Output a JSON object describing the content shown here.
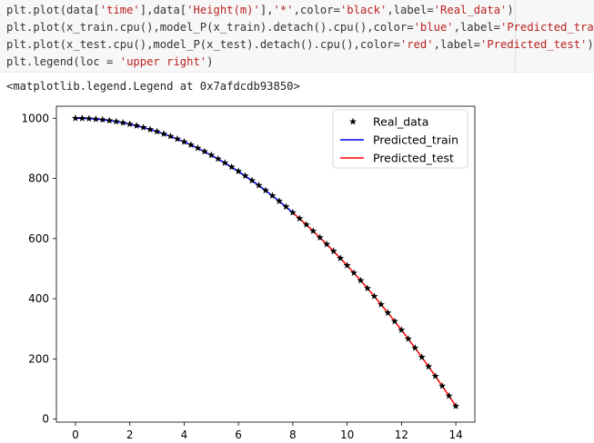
{
  "code": {
    "lines": [
      [
        {
          "t": "plt.plot(data["
        },
        {
          "t": "'time'",
          "s": 1
        },
        {
          "t": "],data["
        },
        {
          "t": "'Height(m)'",
          "s": 1
        },
        {
          "t": "],"
        },
        {
          "t": "'*'",
          "s": 1
        },
        {
          "t": ",color="
        },
        {
          "t": "'black'",
          "s": 1
        },
        {
          "t": ",label="
        },
        {
          "t": "'Real_data'",
          "s": 1
        },
        {
          "t": ")"
        }
      ],
      [
        {
          "t": "plt.plot(x_train.cpu(),model_P(x_train).detach().cpu(),color="
        },
        {
          "t": "'blue'",
          "s": 1
        },
        {
          "t": ",label="
        },
        {
          "t": "'Predicted_train'",
          "s": 1
        },
        {
          "t": ")"
        }
      ],
      [
        {
          "t": "plt.plot(x_test.cpu(),model_P(x_test).detach().cpu(),color="
        },
        {
          "t": "'red'",
          "s": 1
        },
        {
          "t": ",label="
        },
        {
          "t": "'Predicted_test'",
          "s": 1
        },
        {
          "t": ")"
        }
      ],
      [
        {
          "t": "plt.legend(loc = "
        },
        {
          "t": "'upper right'",
          "s": 1
        },
        {
          "t": ")"
        }
      ]
    ]
  },
  "output_text": "<matplotlib.legend.Legend at 0x7afdcdb93850>",
  "chart_data": {
    "type": "line",
    "title": "",
    "xlabel": "",
    "ylabel": "",
    "xlim": [
      -0.7,
      14.7
    ],
    "ylim": [
      -10,
      1040
    ],
    "xticks": [
      0,
      2,
      4,
      6,
      8,
      10,
      12,
      14
    ],
    "yticks": [
      0,
      200,
      400,
      600,
      800,
      1000
    ],
    "legend_position": "upper right",
    "series": [
      {
        "name": "Real_data",
        "style": "markers-star",
        "color": "#000000",
        "x": [
          0,
          0.25,
          0.5,
          0.75,
          1,
          1.25,
          1.5,
          1.75,
          2,
          2.25,
          2.5,
          2.75,
          3,
          3.25,
          3.5,
          3.75,
          4,
          4.25,
          4.5,
          4.75,
          5,
          5.25,
          5.5,
          5.75,
          6,
          6.25,
          6.5,
          6.75,
          7,
          7.25,
          7.5,
          7.75,
          8,
          8.25,
          8.5,
          8.75,
          9,
          9.25,
          9.5,
          9.75,
          10,
          10.25,
          10.5,
          10.75,
          11,
          11.25,
          11.5,
          11.75,
          12,
          12.25,
          12.5,
          12.75,
          13,
          13.25,
          13.5,
          13.75,
          14
        ],
        "y": [
          1000,
          999.7,
          998.8,
          997.2,
          995.1,
          992.3,
          989,
          985,
          980.4,
          975.2,
          969.4,
          962.9,
          955.9,
          948.2,
          940,
          931.1,
          921.6,
          911.5,
          900.8,
          889.4,
          877.5,
          865,
          851.8,
          838,
          823.6,
          808.6,
          793,
          776.8,
          760,
          742.6,
          724.5,
          705.9,
          686.6,
          666.7,
          646.2,
          625.1,
          603.4,
          581.1,
          558.2,
          534.7,
          510.6,
          485.9,
          460.6,
          434.7,
          408.2,
          381.1,
          353.4,
          325.1,
          296.2,
          266.7,
          236.6,
          205.9,
          174.6,
          142.7,
          110.2,
          77.1,
          43.4
        ]
      },
      {
        "name": "Predicted_train",
        "style": "line",
        "color": "#0000ff",
        "x": [
          0,
          0.5,
          1,
          1.5,
          2,
          2.5,
          3,
          3.5,
          4,
          4.5,
          5,
          5.5,
          6,
          6.5,
          7,
          7.5,
          8
        ],
        "y": [
          1000,
          998.8,
          995.1,
          989,
          980.4,
          969.4,
          955.9,
          940,
          921.6,
          900.8,
          877.5,
          851.8,
          823.6,
          793,
          760,
          724.5,
          686.6
        ]
      },
      {
        "name": "Predicted_test",
        "style": "line",
        "color": "#ff0000",
        "x": [
          8,
          8.5,
          9,
          9.5,
          10,
          10.5,
          11,
          11.5,
          12,
          12.5,
          13,
          13.5,
          14
        ],
        "y": [
          686.6,
          646.2,
          603.4,
          558.2,
          510.6,
          460.6,
          408.2,
          353.4,
          296.2,
          236.6,
          174.6,
          110.2,
          43.4
        ]
      }
    ]
  }
}
